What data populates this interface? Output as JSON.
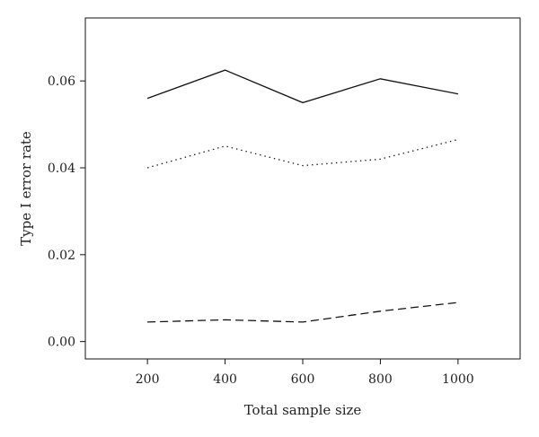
{
  "chart_data": {
    "type": "line",
    "title": "",
    "xlabel": "Total sample size",
    "ylabel": "Type I error rate",
    "x": [
      200,
      400,
      600,
      800,
      1000
    ],
    "x_ticks": [
      "200",
      "400",
      "600",
      "800",
      "1000"
    ],
    "y_ticks": [
      "0.00",
      "0.02",
      "0.04",
      "0.06"
    ],
    "y_tick_values": [
      0.0,
      0.02,
      0.04,
      0.06
    ],
    "xlim": [
      40,
      1160
    ],
    "ylim": [
      -0.004,
      0.0745
    ],
    "grid": false,
    "legend": "none",
    "series": [
      {
        "style": "solid",
        "values": [
          0.056,
          0.0625,
          0.055,
          0.0605,
          0.057
        ]
      },
      {
        "style": "dotted",
        "values": [
          0.04,
          0.045,
          0.0405,
          0.042,
          0.0465
        ]
      },
      {
        "style": "dashed",
        "values": [
          0.0045,
          0.005,
          0.0045,
          0.007,
          0.009
        ]
      }
    ]
  }
}
